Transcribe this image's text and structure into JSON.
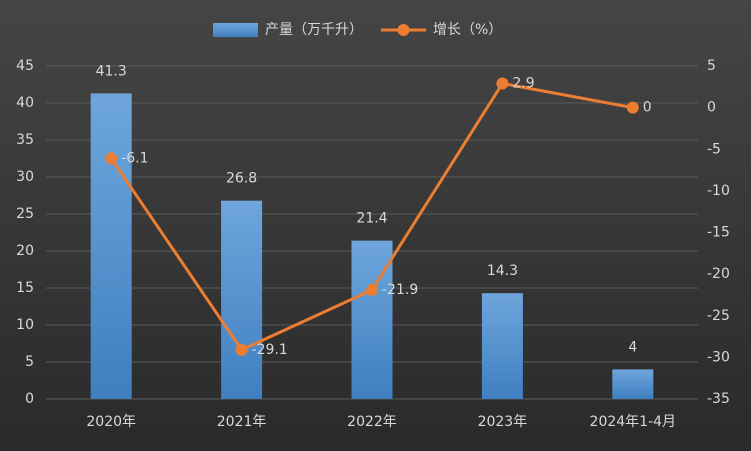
{
  "chart_data": {
    "type": "bar",
    "categories": [
      "2020年",
      "2021年",
      "2022年",
      "2023年",
      "2024年1-4月"
    ],
    "series": [
      {
        "name": "产量（万千升）",
        "type": "bar",
        "color": "#5b9bd5",
        "values": [
          41.3,
          26.8,
          21.4,
          14.3,
          4
        ]
      },
      {
        "name": "增长（%）",
        "type": "line",
        "axis": "y2",
        "color": "#ed7d31",
        "values": [
          -6.1,
          -29.1,
          -21.9,
          2.9,
          0
        ]
      }
    ],
    "ylim": [
      0,
      45
    ],
    "yticks": [
      0,
      5,
      10,
      15,
      20,
      25,
      30,
      35,
      40,
      45
    ],
    "y2lim": [
      -35,
      5
    ],
    "y2ticks": [
      -35,
      -30,
      -25,
      -20,
      -15,
      -10,
      -5,
      0,
      5
    ],
    "grid": true
  }
}
